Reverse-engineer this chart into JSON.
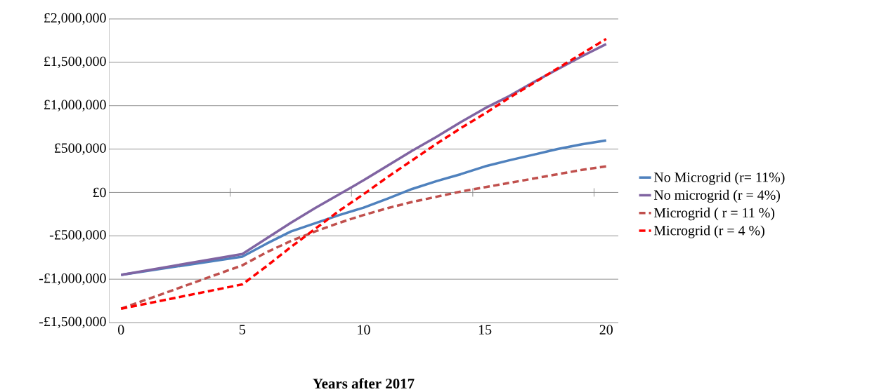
{
  "chart_data": {
    "type": "line",
    "xlabel": "Years after 2017",
    "x": [
      0,
      5,
      6,
      7,
      8,
      9,
      10,
      11,
      12,
      13,
      14,
      15,
      16,
      17,
      18,
      19,
      20
    ],
    "series": [
      {
        "name": "No Microgrid (r= 11%)",
        "color": "#4f81bd",
        "values": [
          -950000,
          -740000,
          -590000,
          -450000,
          -355000,
          -260000,
          -175000,
          -70000,
          40000,
          130000,
          210000,
          300000,
          370000,
          435000,
          500000,
          555000,
          600000
        ]
      },
      {
        "name": "No microgrid (r = 4%)",
        "color": "#8064a2",
        "values": [
          -950000,
          -710000,
          -530000,
          -350000,
          -180000,
          -20000,
          140000,
          310000,
          480000,
          640000,
          810000,
          970000,
          1110000,
          1270000,
          1420000,
          1570000,
          1710000
        ]
      },
      {
        "name": "Microgrid ( r = 11 %)",
        "color": "#c0504d",
        "line_style": "dashed",
        "values": [
          -1340000,
          -840000,
          -690000,
          -560000,
          -450000,
          -350000,
          -260000,
          -180000,
          -110000,
          -50000,
          10000,
          60000,
          110000,
          160000,
          210000,
          260000,
          300000
        ]
      },
      {
        "name": "Microgrid (r = 4 %)",
        "color": "#ff0000",
        "line_style": "dashed",
        "values": [
          -1340000,
          -1060000,
          -850000,
          -630000,
          -420000,
          -210000,
          -20000,
          180000,
          370000,
          560000,
          740000,
          910000,
          1090000,
          1260000,
          1430000,
          1600000,
          1770000
        ]
      }
    ],
    "xlim": [
      -0.5,
      20.5
    ],
    "xticks": [
      0,
      5,
      10,
      15,
      20,
      {
        "value": 4.5,
        "label": null
      },
      {
        "value": 9.5,
        "label": null
      },
      {
        "value": 14.5,
        "label": null
      },
      {
        "value": 19.5,
        "label": null
      }
    ],
    "ylim": [
      -1500000,
      2000000
    ],
    "yticks": [
      {
        "value": -1500000,
        "label": "-£1,500,000"
      },
      {
        "value": -1000000,
        "label": "-£1,000,000"
      },
      {
        "value": -500000,
        "label": "-£500,000"
      },
      {
        "value": 0,
        "label": "£0"
      },
      {
        "value": 500000,
        "label": "£500,000"
      },
      {
        "value": 1000000,
        "label": "£1,000,000"
      },
      {
        "value": 1500000,
        "label": "£1,500,000"
      },
      {
        "value": 2000000,
        "label": "£2,000,000"
      }
    ],
    "grid": "y",
    "legend": "right",
    "marker": "none",
    "line_style": "solid"
  }
}
